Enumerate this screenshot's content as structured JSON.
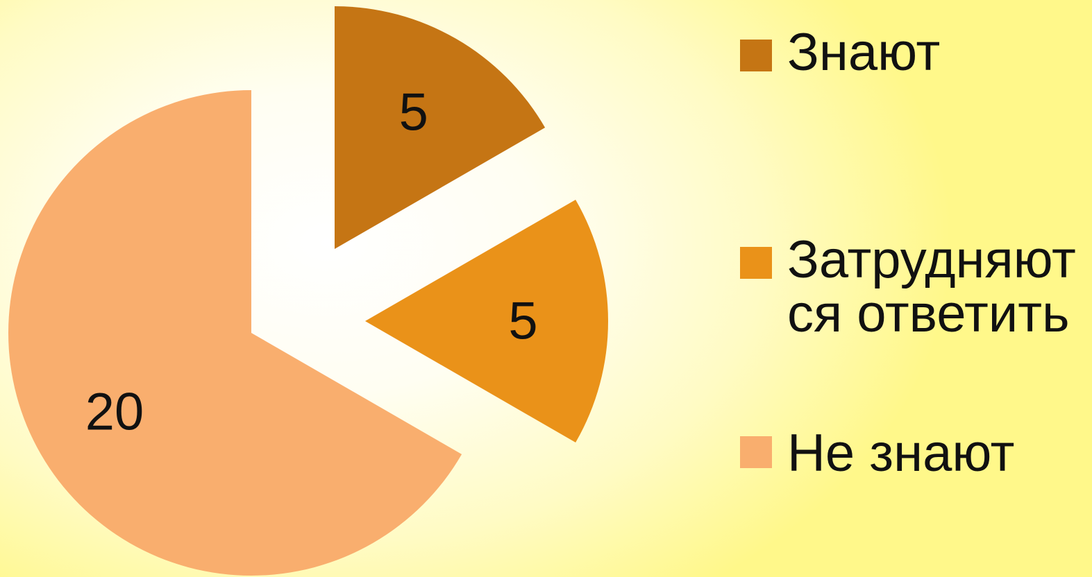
{
  "chart_data": {
    "type": "pie",
    "start_angle_deg": 0,
    "direction": "clockwise",
    "exploded": true,
    "slices": [
      {
        "name": "Знают",
        "value": 5,
        "label": "5",
        "color": "#c57514"
      },
      {
        "name": "Затрудняются ответить",
        "value": 5,
        "label": "5",
        "color": "#ea9219"
      },
      {
        "name": "Не знают",
        "value": 20,
        "label": "20",
        "color": "#f9ae6e"
      }
    ],
    "legend": {
      "position": "right",
      "items": [
        {
          "text": "Знают",
          "color": "#c57514"
        },
        {
          "text": "Затрудняются ответить",
          "color": "#ea9219"
        },
        {
          "text": "Не знают",
          "color": "#f9ae6e"
        }
      ]
    }
  }
}
